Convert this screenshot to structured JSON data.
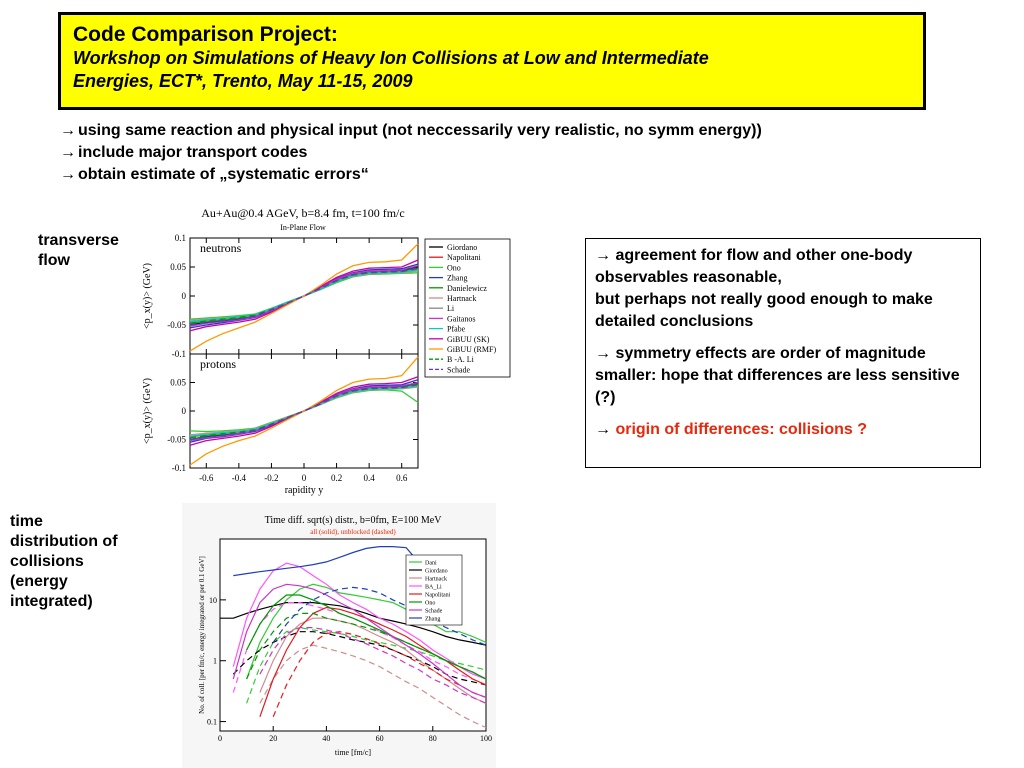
{
  "title": {
    "main": "Code Comparison Project:",
    "sub1": "Workshop on Simulations of Heavy Ion Collisions at Low and Intermediate",
    "sub2": "Energies, ECT*, Trento, May 11-15, 2009"
  },
  "bullets": [
    "using same reaction and physical input (not neccessarily very realistic, no symm energy))",
    "include major transport codes",
    "obtain estimate of „systematic errors“"
  ],
  "labels": {
    "transverse1": "transverse",
    "transverse2": "flow",
    "time1": "time",
    "time2": "distribution of",
    "time3": "collisions",
    "time4": "(energy",
    "time5": "integrated)"
  },
  "notes": {
    "p1a": "agreement for flow and other one-body observables reasonable,",
    "p1b": "but perhaps not really good enough to make detailed conclusions",
    "p2": "symmetry effects are order of magnitude smaller: hope that differences are less sensitive (?)",
    "p3": "origin of differences: collisions ?"
  },
  "colors": {
    "title_bg": "#ffff00",
    "highlight": "#e8280c"
  },
  "chart_data": [
    {
      "type": "line",
      "title": "Au+Au@0.4 AGeV, b=8.4 fm, t=100 fm/c",
      "subtitle": "In-Plane Flow",
      "xlabel": "rapidity y",
      "ylabel": "<p_x(y)> (GeV)",
      "xlim": [
        -0.7,
        0.7
      ],
      "ylim": [
        -0.1,
        0.1
      ],
      "xticks": [
        "-0.6",
        "-0.4",
        "-0.2",
        "0",
        "0.2",
        "0.4",
        "0.6"
      ],
      "yticks": [
        "0.1",
        "0.05",
        "0",
        "-0.05",
        "-0.1"
      ],
      "panels": [
        "neutrons",
        "protons"
      ],
      "x": [
        -0.7,
        -0.6,
        -0.5,
        -0.4,
        -0.3,
        -0.2,
        -0.1,
        0,
        0.1,
        0.2,
        0.3,
        0.4,
        0.5,
        0.6,
        0.7
      ],
      "series": [
        {
          "name": "Giordano",
          "color": "#000000",
          "dash": "none",
          "neutrons": [
            -0.05,
            -0.045,
            -0.043,
            -0.04,
            -0.036,
            -0.025,
            -0.012,
            0,
            0.014,
            0.028,
            0.038,
            0.042,
            0.043,
            0.044,
            0.05
          ],
          "protons": [
            -0.05,
            -0.045,
            -0.042,
            -0.04,
            -0.035,
            -0.025,
            -0.012,
            0,
            0.013,
            0.028,
            0.037,
            0.041,
            0.042,
            0.043,
            0.048
          ]
        },
        {
          "name": "Napolitani",
          "color": "#e31a1c",
          "dash": "none",
          "neutrons": [
            -0.045,
            -0.042,
            -0.04,
            -0.037,
            -0.034,
            -0.023,
            -0.011,
            0,
            0.013,
            0.026,
            0.036,
            0.04,
            0.041,
            0.042,
            0.046
          ],
          "protons": [
            -0.045,
            -0.041,
            -0.039,
            -0.036,
            -0.033,
            -0.022,
            -0.011,
            0,
            0.012,
            0.025,
            0.034,
            0.038,
            0.039,
            0.04,
            0.044
          ]
        },
        {
          "name": "Ono",
          "color": "#33cc33",
          "dash": "none",
          "neutrons": [
            -0.04,
            -0.038,
            -0.036,
            -0.034,
            -0.031,
            -0.021,
            -0.01,
            0,
            0.011,
            0.023,
            0.033,
            0.037,
            0.038,
            0.039,
            0.04
          ],
          "protons": [
            -0.035,
            -0.036,
            -0.035,
            -0.033,
            -0.03,
            -0.02,
            -0.01,
            0,
            0.011,
            0.023,
            0.032,
            0.036,
            0.037,
            0.035,
            0.015
          ]
        },
        {
          "name": "Zhang",
          "color": "#1f3fbf",
          "dash": "none",
          "neutrons": [
            -0.055,
            -0.05,
            -0.046,
            -0.042,
            -0.037,
            -0.026,
            -0.013,
            0,
            0.015,
            0.03,
            0.04,
            0.045,
            0.046,
            0.047,
            0.055
          ],
          "protons": [
            -0.055,
            -0.048,
            -0.045,
            -0.041,
            -0.036,
            -0.025,
            -0.012,
            0,
            0.014,
            0.029,
            0.039,
            0.044,
            0.045,
            0.046,
            0.055
          ]
        },
        {
          "name": "Danielewicz",
          "color": "#009900",
          "dash": "none",
          "neutrons": [
            -0.048,
            -0.044,
            -0.041,
            -0.038,
            -0.034,
            -0.024,
            -0.012,
            0,
            0.013,
            0.027,
            0.037,
            0.041,
            0.042,
            0.043,
            0.048
          ],
          "protons": [
            -0.05,
            -0.044,
            -0.041,
            -0.038,
            -0.034,
            -0.024,
            -0.012,
            0,
            0.013,
            0.027,
            0.036,
            0.04,
            0.041,
            0.042,
            0.047
          ]
        },
        {
          "name": "Hartnack",
          "color": "#d08c8c",
          "dash": "none",
          "neutrons": [
            -0.042,
            -0.04,
            -0.038,
            -0.036,
            -0.032,
            -0.022,
            -0.011,
            0,
            0.012,
            0.025,
            0.034,
            0.038,
            0.039,
            0.04,
            0.043
          ],
          "protons": [
            -0.042,
            -0.039,
            -0.037,
            -0.035,
            -0.031,
            -0.021,
            -0.01,
            0,
            0.011,
            0.024,
            0.033,
            0.037,
            0.038,
            0.039,
            0.042
          ]
        },
        {
          "name": "Li",
          "color": "#888888",
          "dash": "none",
          "neutrons": [
            -0.046,
            -0.043,
            -0.04,
            -0.037,
            -0.033,
            -0.023,
            -0.011,
            0,
            0.012,
            0.026,
            0.036,
            0.04,
            0.041,
            0.042,
            0.046
          ],
          "protons": [
            -0.046,
            -0.042,
            -0.04,
            -0.037,
            -0.033,
            -0.023,
            -0.011,
            0,
            0.012,
            0.026,
            0.035,
            0.039,
            0.04,
            0.041,
            0.045
          ]
        },
        {
          "name": "Gaitanos",
          "color": "#cc33cc",
          "dash": "none",
          "neutrons": [
            -0.052,
            -0.047,
            -0.044,
            -0.041,
            -0.036,
            -0.025,
            -0.012,
            0,
            0.014,
            0.029,
            0.039,
            0.043,
            0.044,
            0.045,
            0.052
          ],
          "protons": [
            -0.052,
            -0.047,
            -0.044,
            -0.04,
            -0.035,
            -0.024,
            -0.012,
            0,
            0.013,
            0.028,
            0.038,
            0.042,
            0.043,
            0.044,
            0.05
          ]
        },
        {
          "name": "Pfabe",
          "color": "#00cccc",
          "dash": "none",
          "neutrons": [
            -0.044,
            -0.041,
            -0.039,
            -0.036,
            -0.032,
            -0.022,
            -0.011,
            0,
            0.012,
            0.025,
            0.035,
            0.039,
            0.04,
            0.041,
            0.045
          ],
          "protons": [
            -0.044,
            -0.041,
            -0.038,
            -0.036,
            -0.032,
            -0.022,
            -0.011,
            0,
            0.012,
            0.025,
            0.034,
            0.038,
            0.039,
            0.04,
            0.044
          ]
        },
        {
          "name": "GiBUU (SK)",
          "color": "#cc00aa",
          "dash": "none",
          "neutrons": [
            -0.06,
            -0.053,
            -0.049,
            -0.045,
            -0.04,
            -0.028,
            -0.014,
            0,
            0.016,
            0.032,
            0.043,
            0.048,
            0.049,
            0.05,
            0.062
          ],
          "protons": [
            -0.06,
            -0.052,
            -0.048,
            -0.044,
            -0.039,
            -0.027,
            -0.013,
            0,
            0.015,
            0.031,
            0.042,
            0.047,
            0.048,
            0.05,
            0.06
          ]
        },
        {
          "name": "GiBUU (RMF)",
          "color": "#ff9900",
          "dash": "none",
          "neutrons": [
            -0.095,
            -0.078,
            -0.065,
            -0.055,
            -0.045,
            -0.03,
            -0.015,
            0,
            0.018,
            0.038,
            0.052,
            0.058,
            0.059,
            0.062,
            0.09
          ],
          "protons": [
            -0.095,
            -0.075,
            -0.062,
            -0.052,
            -0.044,
            -0.03,
            -0.015,
            0,
            0.017,
            0.036,
            0.05,
            0.056,
            0.057,
            0.062,
            0.095
          ]
        },
        {
          "name": "B -A. Li",
          "color": "#009900",
          "dash": "6,4",
          "neutrons": [
            -0.047,
            -0.043,
            -0.04,
            -0.037,
            -0.033,
            -0.023,
            -0.012,
            0,
            0.013,
            0.026,
            0.036,
            0.04,
            0.041,
            0.042,
            0.047
          ],
          "protons": [
            -0.047,
            -0.043,
            -0.04,
            -0.037,
            -0.033,
            -0.023,
            -0.011,
            0,
            0.012,
            0.026,
            0.035,
            0.039,
            0.04,
            0.041,
            0.046
          ]
        },
        {
          "name": "Schade",
          "color": "#6633cc",
          "dash": "6,4",
          "neutrons": [
            -0.05,
            -0.046,
            -0.043,
            -0.04,
            -0.035,
            -0.024,
            -0.012,
            0,
            0.013,
            0.027,
            0.037,
            0.041,
            0.042,
            0.043,
            0.049
          ],
          "protons": [
            -0.05,
            -0.046,
            -0.043,
            -0.039,
            -0.035,
            -0.024,
            -0.012,
            0,
            0.013,
            0.027,
            0.036,
            0.04,
            0.041,
            0.042,
            0.048
          ]
        }
      ]
    },
    {
      "type": "line",
      "title": "Time diff. sqrt(s) distr., b=0fm, E=100 MeV",
      "subtitle": "all (solid), unblocked (dashed)",
      "xlabel": "time [fm/c]",
      "ylabel": "No. of coll. [per fm/c, energy integrated or per 0.1 GeV]",
      "log_y": true,
      "xlim": [
        0,
        100
      ],
      "ylim": [
        0.07,
        100
      ],
      "xticks": [
        "0",
        "20",
        "40",
        "60",
        "80",
        "100"
      ],
      "yticks": [
        "10",
        "1",
        "0.1"
      ],
      "x": [
        0,
        5,
        10,
        15,
        20,
        25,
        30,
        35,
        40,
        45,
        50,
        55,
        60,
        65,
        70,
        75,
        80,
        85,
        90,
        95,
        100
      ],
      "series": [
        {
          "name": "Dani",
          "color": "#33cc33",
          "solid": [
            null,
            null,
            0.5,
            2,
            5,
            10,
            15,
            18,
            16,
            13,
            12,
            11,
            10,
            9,
            7,
            5,
            4,
            3,
            3,
            2.5,
            2
          ],
          "dashed": [
            null,
            null,
            0.2,
            0.8,
            2,
            3,
            3.5,
            3.2,
            3,
            2.8,
            2.5,
            2.2,
            2,
            1.8,
            1.6,
            1.4,
            1.2,
            1,
            0.9,
            0.8,
            0.7
          ]
        },
        {
          "name": "Giordano",
          "color": "#000000",
          "solid": [
            5,
            5,
            6,
            7,
            8,
            9,
            9,
            9,
            8.5,
            8,
            7,
            6,
            5,
            4.5,
            4,
            3.5,
            3,
            2.5,
            2.2,
            2,
            1.8
          ],
          "dashed": [
            null,
            0.6,
            1,
            1.5,
            2,
            2.5,
            3,
            3,
            2.8,
            2.5,
            2.2,
            2,
            1.8,
            1.5,
            1.2,
            1,
            0.8,
            0.6,
            0.5,
            0.45,
            0.4
          ]
        },
        {
          "name": "Hartnack",
          "color": "#d08c8c",
          "solid": [
            null,
            null,
            null,
            0.3,
            1,
            2.5,
            4,
            5,
            5,
            4.5,
            4,
            3.2,
            2.5,
            2,
            1.5,
            1,
            0.7,
            0.5,
            0.35,
            0.25,
            0.2
          ],
          "dashed": [
            null,
            null,
            null,
            0.2,
            0.5,
            1,
            1.5,
            1.8,
            1.6,
            1.4,
            1.2,
            1,
            0.8,
            0.6,
            0.45,
            0.35,
            0.25,
            0.18,
            0.13,
            0.1,
            0.08
          ]
        },
        {
          "name": "BA_Li",
          "color": "#ff55ff",
          "solid": [
            null,
            0.8,
            5,
            15,
            30,
            40,
            35,
            25,
            18,
            12,
            9,
            7,
            5,
            4,
            3,
            2.2,
            1.5,
            1.1,
            0.8,
            0.6,
            0.5
          ],
          "dashed": [
            null,
            0.3,
            1.5,
            4,
            7,
            9,
            9,
            8,
            7,
            6,
            5,
            4,
            3,
            2.4,
            1.8,
            1.4,
            1,
            0.8,
            0.6,
            0.5,
            0.4
          ]
        },
        {
          "name": "Napolitani",
          "color": "#e31a1c",
          "solid": [
            null,
            null,
            null,
            0.12,
            0.5,
            1.5,
            3.5,
            6,
            7.5,
            7,
            6,
            5,
            4,
            3.2,
            2.5,
            1.8,
            1.3,
            1,
            0.7,
            0.5,
            0.4
          ],
          "dashed": [
            null,
            null,
            null,
            null,
            0.12,
            0.4,
            1,
            2,
            2.8,
            3,
            2.7,
            2.3,
            1.9,
            1.5,
            1.2,
            0.9,
            0.7,
            0.5,
            0.4,
            0.3,
            0.25
          ]
        },
        {
          "name": "Ono",
          "color": "#009900",
          "solid": [
            null,
            null,
            1.5,
            4,
            8,
            12,
            12,
            10,
            8,
            6,
            5,
            4,
            3.2,
            2.5,
            2,
            1.6,
            1.3,
            1,
            0.8,
            0.65,
            0.5
          ],
          "dashed": [
            null,
            null,
            0.5,
            1.5,
            3,
            5,
            6,
            6,
            5,
            4.5,
            4,
            3.5,
            3,
            2.5,
            2,
            1.6,
            1.3,
            1,
            0.8,
            0.65,
            0.5
          ]
        },
        {
          "name": "Schade",
          "color": "#cc33cc",
          "solid": [
            null,
            0.5,
            3,
            9,
            15,
            18,
            17,
            15,
            12,
            9,
            7,
            5,
            3.5,
            2.5,
            1.8,
            1.3,
            0.9,
            0.6,
            0.4,
            0.3,
            0.25
          ],
          "dashed": [
            null,
            null,
            null,
            0.6,
            1.5,
            2.8,
            3.5,
            3.5,
            3.2,
            2.8,
            2.3,
            1.9,
            1.5,
            1.2,
            0.9,
            0.7,
            0.5,
            0.4,
            0.3,
            0.25,
            0.2
          ]
        },
        {
          "name": "Zhang",
          "color": "#1f3fbf",
          "solid": [
            null,
            25,
            27,
            29,
            31,
            33,
            35,
            38,
            42,
            50,
            60,
            70,
            75,
            75,
            72,
            40,
            25,
            18,
            12,
            null,
            null
          ],
          "dashed": [
            null,
            null,
            null,
            null,
            2,
            4,
            7,
            10,
            13,
            15,
            16,
            15,
            13,
            10,
            8,
            6,
            4.5,
            3.5,
            2.8,
            2.2,
            1.8
          ]
        }
      ]
    }
  ]
}
